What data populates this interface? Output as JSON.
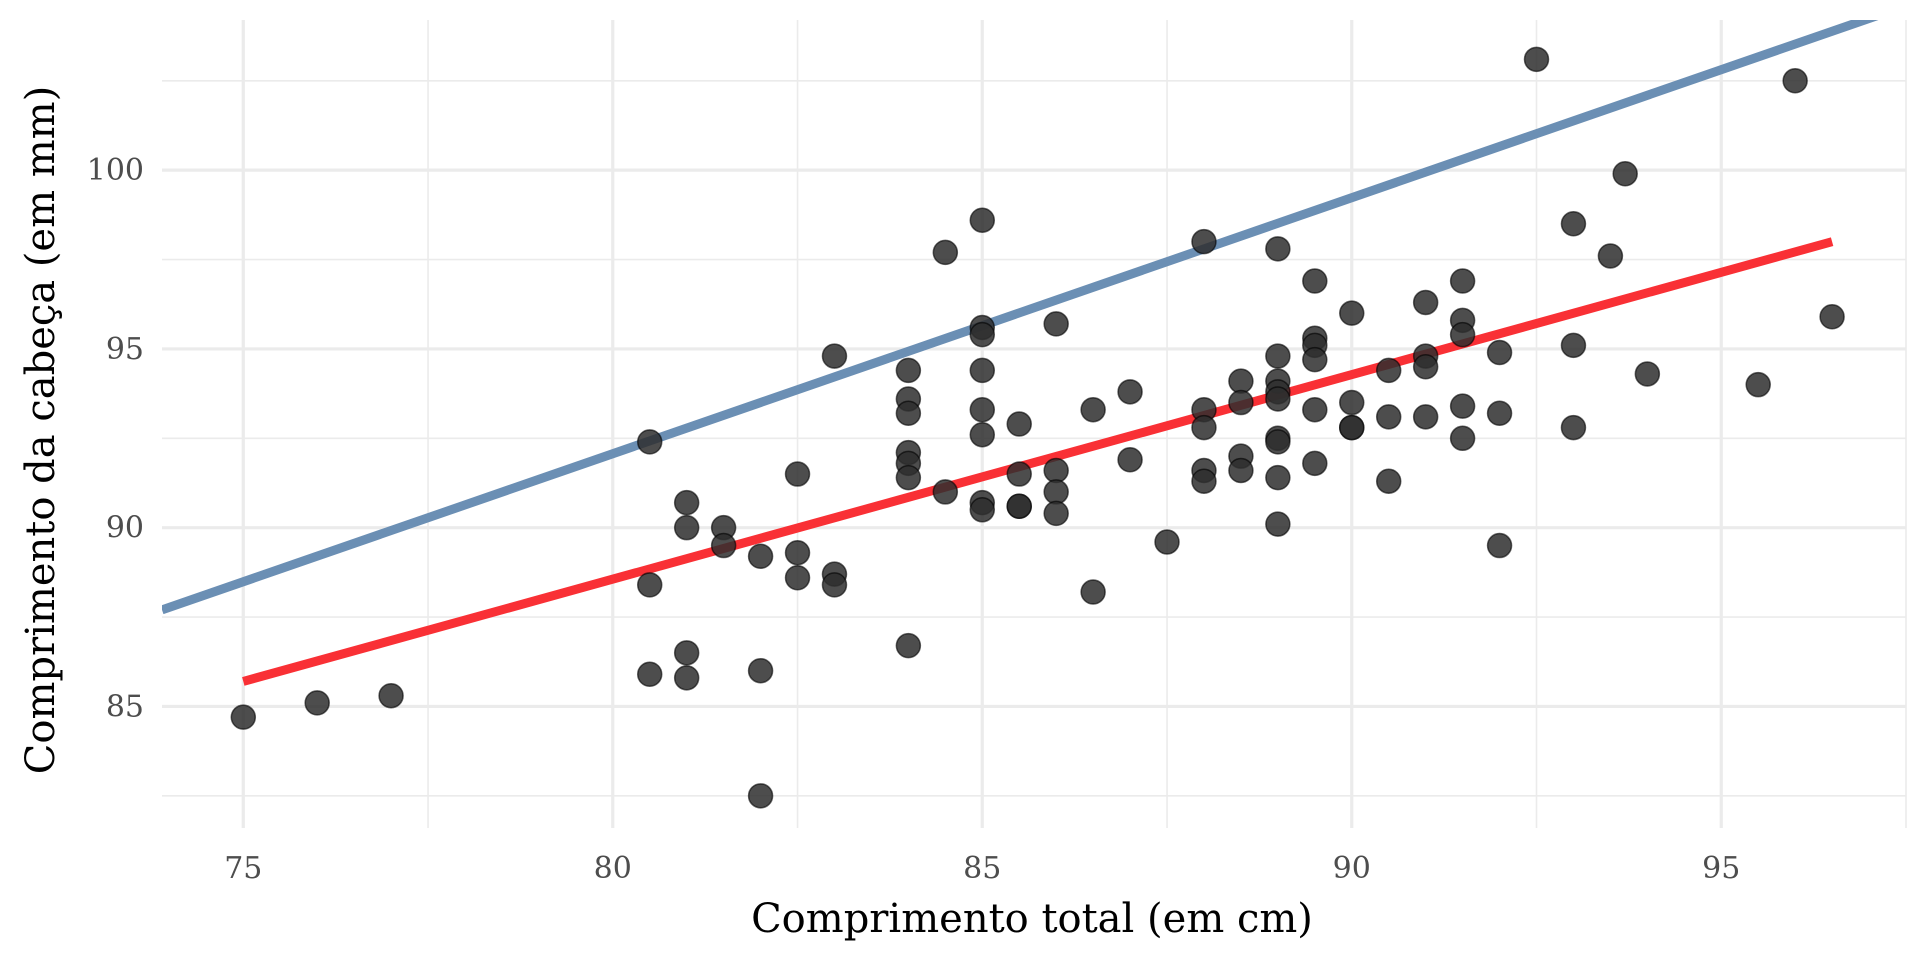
{
  "chart_data": {
    "type": "scatter",
    "title": "",
    "xlabel": "Comprimento total (em cm)",
    "ylabel": "Comprimento da cabeça (em mm)",
    "xlim": [
      73.9,
      97.5
    ],
    "ylim": [
      81.6,
      104.2
    ],
    "x_ticks": [
      75,
      80,
      85,
      90,
      95
    ],
    "y_ticks": [
      85,
      90,
      95,
      100
    ],
    "x_minor": [
      77.5,
      82.5,
      87.5,
      92.5,
      97.5
    ],
    "y_minor": [
      82.5,
      87.5,
      92.5,
      97.5,
      102.5
    ],
    "x_tick_labels": [
      "75",
      "80",
      "85",
      "90",
      "95"
    ],
    "y_tick_labels": [
      "85",
      "90",
      "95",
      "100"
    ],
    "grid": true,
    "points": {
      "x": [
        75,
        76,
        77,
        80.5,
        80.5,
        80.5,
        81,
        81,
        81,
        81,
        81.5,
        81.5,
        82,
        82,
        82,
        82.5,
        82.5,
        82.5,
        83,
        83,
        83,
        84,
        84,
        84,
        84,
        84,
        84,
        84,
        84.5,
        84.5,
        85,
        85,
        85,
        85,
        85,
        85,
        85,
        85,
        85.5,
        85.5,
        85.5,
        85.5,
        86,
        86,
        86,
        86,
        86.5,
        86.5,
        87,
        87,
        87.5,
        88,
        88,
        88,
        88,
        88,
        88.5,
        88.5,
        88.5,
        88.5,
        89,
        89,
        89,
        89,
        89,
        89,
        89,
        89,
        89,
        89.5,
        89.5,
        89.5,
        89.5,
        89.5,
        89.5,
        90,
        90,
        90,
        90,
        90.5,
        90.5,
        90.5,
        91,
        91,
        91,
        91,
        91.5,
        91.5,
        91.5,
        91.5,
        91.5,
        92,
        92,
        92,
        92.5,
        93,
        93,
        93,
        93.5,
        93.7,
        94,
        95.5,
        96,
        96.5
      ],
      "y": [
        84.7,
        85.1,
        85.3,
        92.4,
        88.4,
        85.9,
        90.7,
        90,
        86.5,
        85.8,
        90,
        89.5,
        89.2,
        86,
        82.5,
        91.5,
        89.3,
        88.6,
        94.8,
        88.7,
        88.4,
        94.4,
        93.6,
        93.2,
        92.1,
        91.8,
        91.4,
        86.7,
        97.7,
        91,
        98.6,
        95.6,
        95.4,
        94.4,
        93.3,
        92.6,
        90.7,
        90.5,
        92.9,
        91.5,
        90.6,
        90.6,
        95.7,
        91.6,
        91,
        90.4,
        93.3,
        88.2,
        93.8,
        91.9,
        89.6,
        98,
        93.3,
        92.8,
        91.6,
        91.3,
        94.1,
        93.5,
        92,
        91.6,
        97.8,
        94.8,
        94.1,
        93.8,
        93.6,
        92.5,
        92.4,
        91.4,
        90.1,
        96.9,
        95.3,
        95.1,
        94.7,
        93.3,
        91.8,
        96,
        93.5,
        92.8,
        92.8,
        94.4,
        93.1,
        91.3,
        96.3,
        94.8,
        94.5,
        93.1,
        96.9,
        95.8,
        95.4,
        93.4,
        92.5,
        94.9,
        93.2,
        89.5,
        103.1,
        98.5,
        95.1,
        92.8,
        97.6,
        99.9,
        94.3,
        94,
        102.5,
        95.9
      ]
    },
    "lines": [
      {
        "name": "reta azul",
        "color": "#6b8fb4",
        "x": [
          73.9,
          97.5
        ],
        "y": [
          87.7,
          104.6
        ]
      },
      {
        "name": "reta vermelha",
        "color": "#f93035",
        "x": [
          75,
          96.5
        ],
        "y": [
          85.7,
          98
        ]
      }
    ],
    "point_color": "#2e2e2e",
    "grid_color": "#ebebeb",
    "background": "#ffffff"
  }
}
